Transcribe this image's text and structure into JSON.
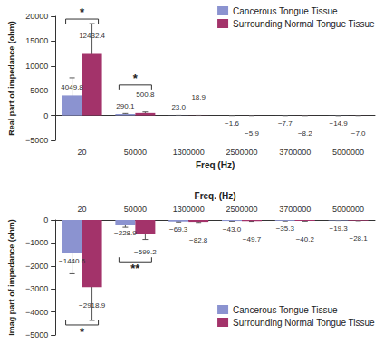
{
  "chart_data": [
    {
      "type": "bar",
      "x_label": "Freq (Hz)",
      "y_label": "Real part of impedance (ohm)",
      "categories": [
        "20",
        "50000",
        "1300000",
        "2500000",
        "3700000",
        "5000000"
      ],
      "series": [
        {
          "name": "Cancerous Tongue Tissue",
          "color": "#8b93d0",
          "values": [
            4049.8,
            290.1,
            23.0,
            -1.6,
            -7.7,
            -14.9
          ],
          "value_labels": [
            "4049.8",
            "290.1",
            "23.0",
            "−1.6",
            "−7.7",
            "−14.9"
          ],
          "errors": [
            3550,
            120,
            10,
            2,
            3,
            4
          ]
        },
        {
          "name": "Surrounding Normal Tongue Tissue",
          "color": "#a3336a",
          "values": [
            12432.4,
            500.8,
            18.9,
            -5.9,
            -8.2,
            -7.0
          ],
          "value_labels": [
            "12432.4",
            "500.8",
            "18.9",
            "−5.9",
            "−8.2",
            "−7.0"
          ],
          "errors": [
            6100,
            200,
            8,
            3,
            3,
            3
          ]
        }
      ],
      "ylim": [
        -5000,
        20000
      ],
      "yticks": [
        {
          "value": -5000,
          "label": "−5000"
        },
        0,
        5000,
        10000,
        15000,
        20000
      ],
      "grid": false,
      "legend": "upper right",
      "data_labels": true,
      "annotations": [
        {
          "text": "*",
          "category": "20"
        },
        {
          "text": "*",
          "category": "50000"
        }
      ]
    },
    {
      "type": "bar",
      "x_label": "Freq. (Hz)",
      "y_label": "Imag part of impedance (ohm)",
      "categories": [
        "20",
        "50000",
        "1300000",
        "2500000",
        "3700000",
        "5000000"
      ],
      "series": [
        {
          "name": "Cancerous Tongue Tissue",
          "color": "#8b93d0",
          "values": [
            -1440.6,
            -228.9,
            -69.3,
            -43.0,
            -35.3,
            -19.3
          ],
          "value_labels": [
            "−1440.6",
            "−228.9",
            "−69.3",
            "−43.0",
            "−35.3",
            "−19.3"
          ],
          "errors": [
            900,
            90,
            20,
            10,
            8,
            5
          ]
        },
        {
          "name": "Surrounding Normal Tongue Tissue",
          "color": "#a3336a",
          "values": [
            -2918.9,
            -599.2,
            -82.8,
            -49.7,
            -40.2,
            -28.1
          ],
          "value_labels": [
            "−2918.9",
            "−599.2",
            "−82.8",
            "−49.7",
            "−40.2",
            "−28.1"
          ],
          "errors": [
            1450,
            250,
            25,
            12,
            10,
            8
          ]
        }
      ],
      "ylim": [
        -5000,
        0
      ],
      "yticks": [
        {
          "value": -5000,
          "label": "−5000"
        },
        {
          "value": -4000,
          "label": "−4000"
        },
        {
          "value": -3000,
          "label": "−3000"
        },
        {
          "value": -2000,
          "label": "−2000"
        },
        {
          "value": -1000,
          "label": "−1000"
        },
        0
      ],
      "grid": false,
      "legend": "lower right",
      "data_labels": true,
      "annotations": [
        {
          "text": "**",
          "category": "50000"
        },
        {
          "text": "*",
          "category": "20"
        }
      ]
    }
  ]
}
